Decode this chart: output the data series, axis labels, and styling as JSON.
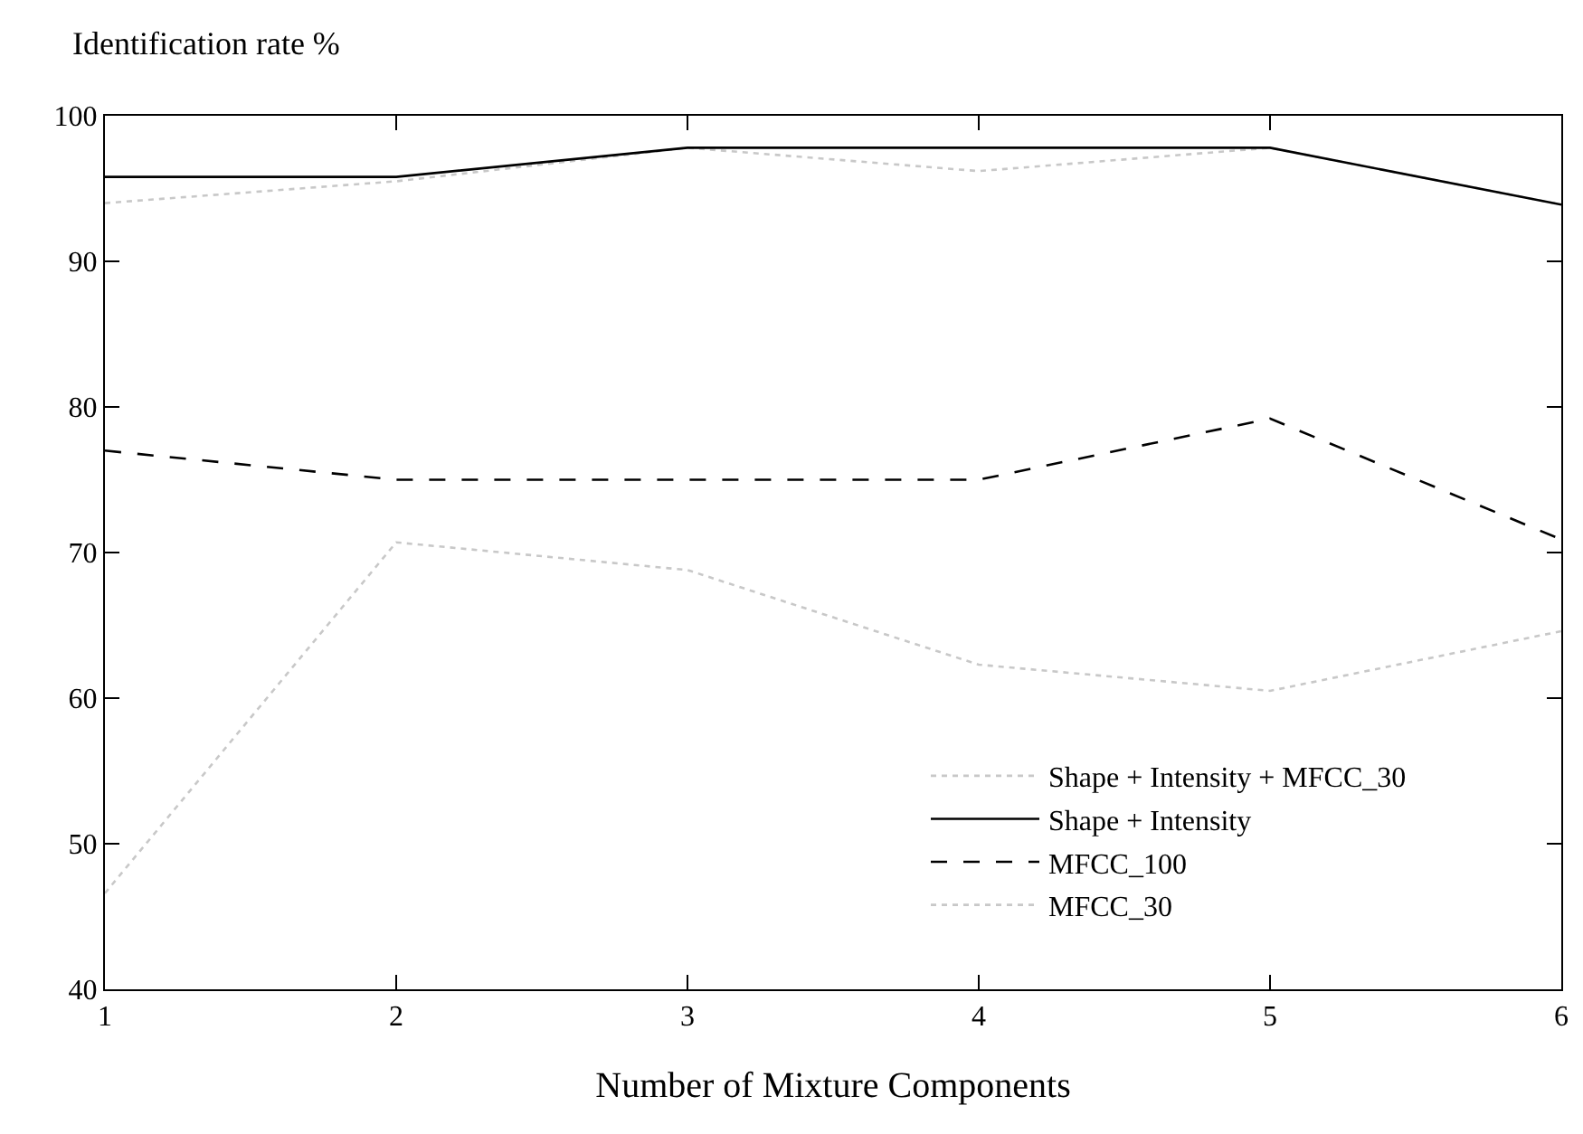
{
  "chart_data": {
    "type": "line",
    "ylabel": "Identification rate %",
    "xlabel": "Number of Mixture Components",
    "x": [
      1,
      2,
      3,
      4,
      5,
      6
    ],
    "series": [
      {
        "name": "Shape + Intensity + MFCC_30",
        "color": "#c8c8c8",
        "line_style": "dotted",
        "values": [
          94.0,
          95.5,
          97.8,
          96.2,
          97.8,
          93.9
        ]
      },
      {
        "name": "Shape + Intensity",
        "color": "#000000",
        "line_style": "solid",
        "values": [
          95.8,
          95.8,
          97.8,
          97.8,
          97.8,
          93.9
        ]
      },
      {
        "name": "MFCC_100",
        "color": "#000000",
        "line_style": "dashed",
        "values": [
          77.0,
          75.0,
          75.0,
          75.0,
          79.2,
          70.9
        ]
      },
      {
        "name": "MFCC_30",
        "color": "#c8c8c8",
        "line_style": "dotted",
        "values": [
          46.6,
          70.7,
          68.8,
          62.3,
          60.5,
          64.6
        ]
      }
    ],
    "xlim": [
      1,
      6
    ],
    "xticks": [
      1,
      2,
      3,
      4,
      5,
      6
    ],
    "ylim": [
      40,
      100
    ],
    "yticks": [
      40,
      50,
      60,
      70,
      80,
      90,
      100
    ],
    "legend": "bottom right",
    "marker": "none"
  }
}
